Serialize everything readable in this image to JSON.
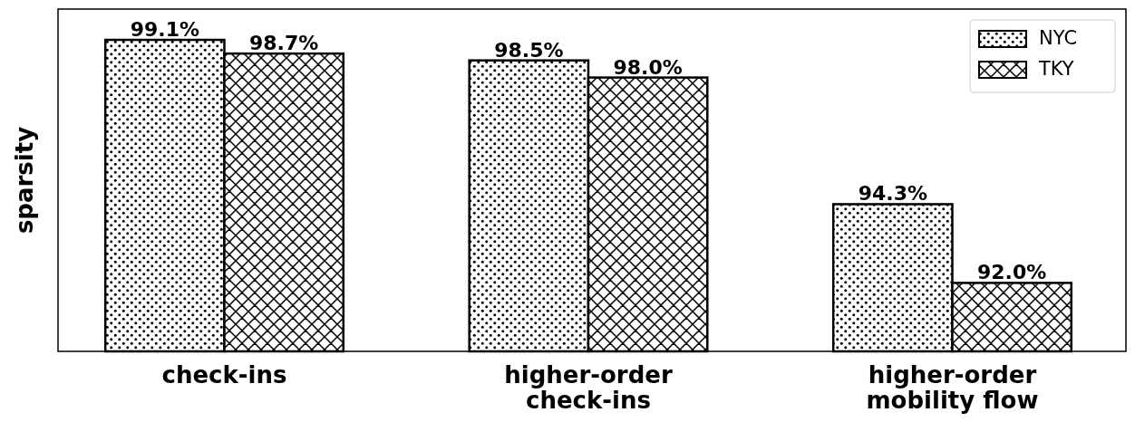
{
  "chart_data": {
    "type": "bar",
    "ylabel": "sparsity",
    "categories": [
      "check-ins",
      "higher-order check-ins",
      "higher-order mobility flow"
    ],
    "ylim": [
      90,
      100
    ],
    "tick_labels": "x",
    "legend": "top right",
    "series": [
      {
        "name": "NYC",
        "color": "#000000",
        "values": [
          99.1,
          98.5,
          94.3
        ],
        "value_labels": [
          "99.1%",
          "98.5%",
          "94.3%"
        ]
      },
      {
        "name": "TKY",
        "color": "#000000",
        "values": [
          98.7,
          98.0,
          92.0
        ],
        "value_labels": [
          "98.7%",
          "98.0%",
          "92.0%"
        ]
      }
    ]
  }
}
